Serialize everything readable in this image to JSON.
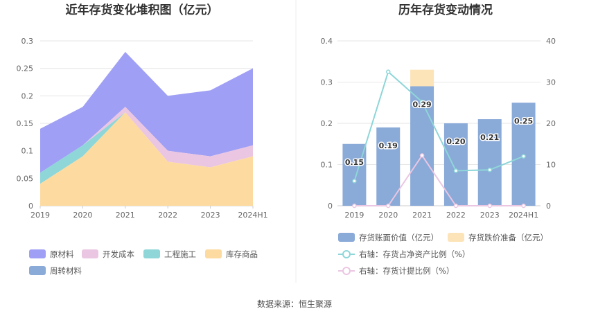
{
  "chart_data": [
    {
      "type": "area",
      "stacked": true,
      "title": "近年存货变化堆积图（亿元）",
      "categories": [
        "2019",
        "2020",
        "2021",
        "2022",
        "2023",
        "2024H1"
      ],
      "ylim": [
        0,
        0.3
      ],
      "yticks": [
        "0",
        "0.05",
        "0.1",
        "0.15",
        "0.2",
        "0.25",
        "0.3"
      ],
      "grid": true,
      "legend_position": "bottom",
      "series": [
        {
          "name": "库存商品",
          "color": "#fddba0",
          "values": [
            0.04,
            0.09,
            0.17,
            0.08,
            0.07,
            0.09
          ]
        },
        {
          "name": "工程施工",
          "color": "#8ed6d8",
          "values": [
            0.02,
            0.02,
            0.0,
            0.0,
            0.0,
            0.0
          ]
        },
        {
          "name": "开发成本",
          "color": "#ebc6e2",
          "values": [
            0.0,
            0.0,
            0.01,
            0.02,
            0.02,
            0.02
          ]
        },
        {
          "name": "原材料",
          "color": "#9f9ff5",
          "values": [
            0.08,
            0.07,
            0.1,
            0.1,
            0.12,
            0.14
          ]
        },
        {
          "name": "周转材料",
          "color": "#8aaad8",
          "values": [
            0,
            0,
            0,
            0,
            0,
            0
          ]
        }
      ],
      "legend_order": [
        "原材料",
        "开发成本",
        "工程施工",
        "库存商品",
        "周转材料"
      ]
    },
    {
      "type": "bar",
      "title": "历年存货变动情况",
      "categories": [
        "2019",
        "2020",
        "2021",
        "2022",
        "2023",
        "2024H1"
      ],
      "ylim": [
        0,
        0.4
      ],
      "yticks": [
        "0",
        "0.1",
        "0.2",
        "0.3",
        "0.4"
      ],
      "y2lim": [
        0,
        40
      ],
      "y2ticks": [
        "0",
        "10",
        "20",
        "30",
        "40"
      ],
      "grid": true,
      "legend_position": "bottom",
      "series": [
        {
          "name": "存货账面价值（亿元）",
          "kind": "bar",
          "color": "#8aaad8",
          "values": [
            0.15,
            0.19,
            0.29,
            0.2,
            0.21,
            0.25
          ],
          "labels": [
            "0.15",
            "0.19",
            "0.29",
            "0.20",
            "0.21",
            "0.25"
          ]
        },
        {
          "name": "存货跌价准备（亿元）",
          "kind": "bar",
          "color": "#fde3b8",
          "values": [
            0,
            0,
            0.04,
            0,
            0,
            0
          ]
        },
        {
          "name": "右轴：存货占净资产比例（%）",
          "kind": "line",
          "axis": "right",
          "color": "#8ed6d8",
          "values": [
            6,
            32.5,
            25.2,
            8.5,
            8.7,
            12
          ]
        },
        {
          "name": "右轴：存货计提比例（%）",
          "kind": "line",
          "axis": "right",
          "color": "#ebc6e2",
          "values": [
            0,
            0,
            12.2,
            0,
            0,
            0
          ]
        }
      ]
    }
  ],
  "footer": {
    "source": "数据来源：恒生聚源"
  }
}
